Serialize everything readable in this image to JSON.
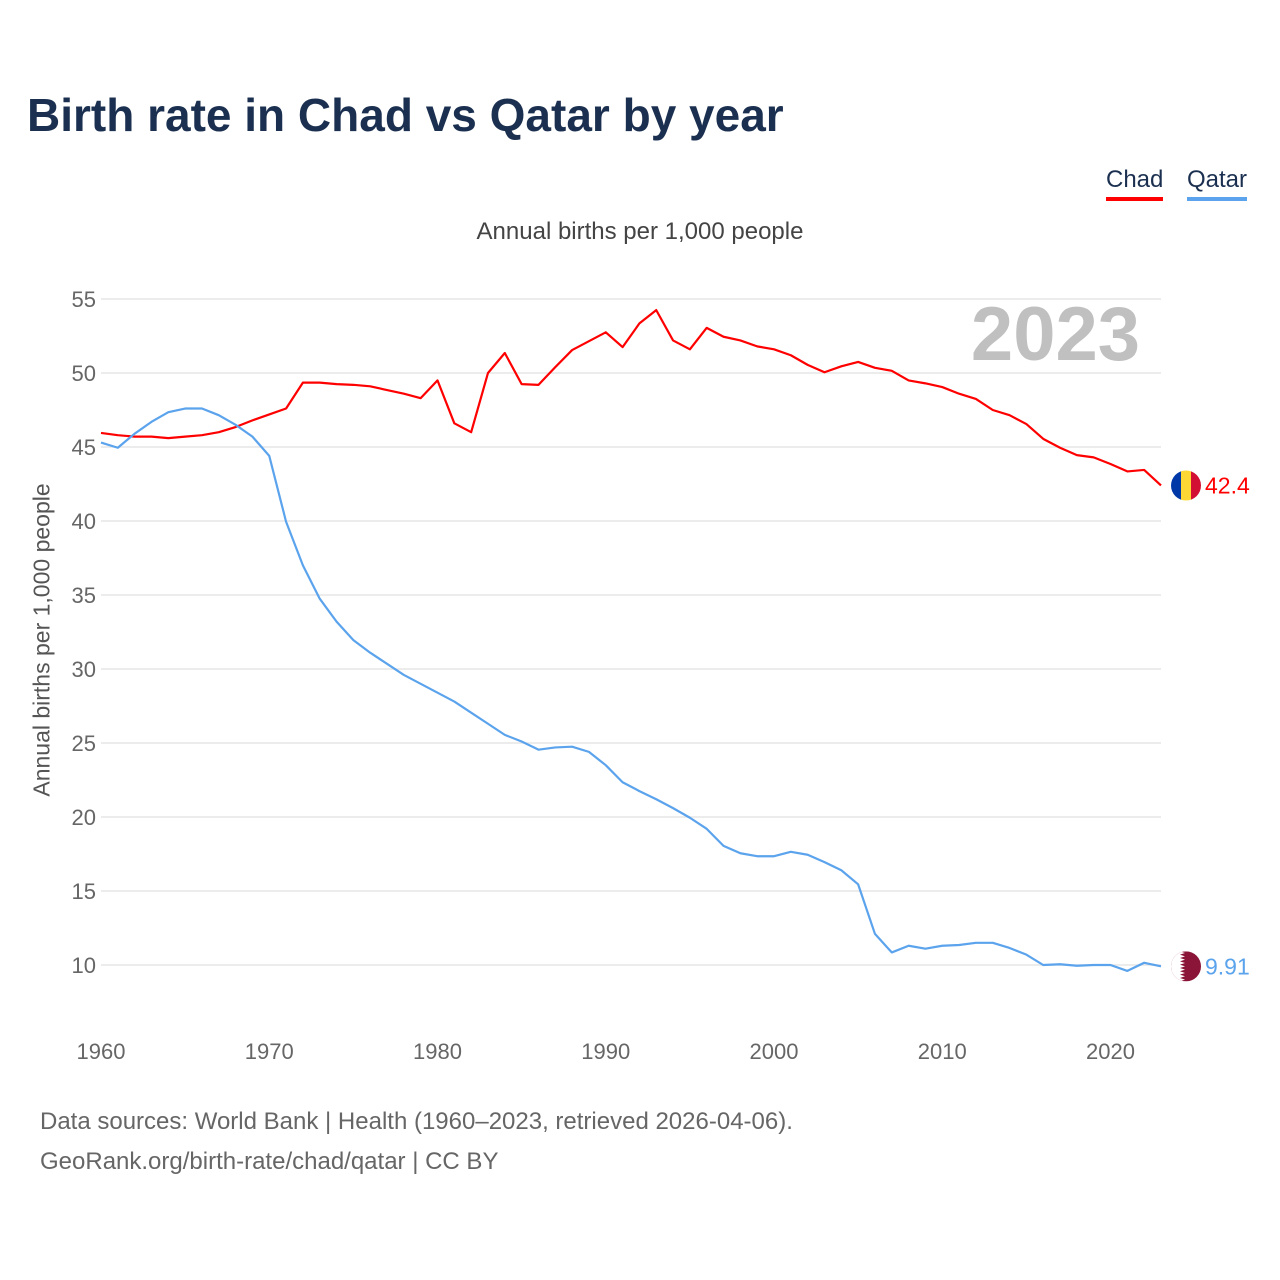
{
  "title": "Birth rate in Chad vs Qatar by year",
  "footer": {
    "line1": "Data sources: World Bank | Health (1960–2023, retrieved 2026-04-06).",
    "line2": "GeoRank.org/birth-rate/chad/qatar | CC BY"
  },
  "chart_data": {
    "type": "line",
    "title": "Birth rate in Chad vs Qatar by year",
    "subtitle": "Annual births per 1,000 people",
    "ylabel": "Annual births per 1,000 people",
    "xlabel": "",
    "year_label": "2023",
    "xlim": [
      1960,
      2023
    ],
    "ylim": [
      10,
      55
    ],
    "yticks": [
      10,
      15,
      20,
      25,
      30,
      35,
      40,
      45,
      50,
      55
    ],
    "xticks": [
      1960,
      1970,
      1980,
      1990,
      2000,
      2010,
      2020
    ],
    "grid": true,
    "legend": "top-right",
    "x_start": 1960,
    "series": [
      {
        "name": "Chad",
        "color": "#ff0000",
        "end_label": "42.4",
        "values": [
          45.95,
          45.8,
          45.7,
          45.7,
          45.6,
          45.7,
          45.8,
          46.0,
          46.35,
          46.8,
          47.2,
          47.6,
          49.35,
          49.35,
          49.25,
          49.2,
          49.1,
          48.85,
          48.6,
          48.3,
          49.5,
          46.6,
          46.0,
          50.0,
          51.35,
          49.25,
          49.2,
          50.4,
          51.55,
          52.15,
          52.75,
          51.75,
          53.35,
          54.25,
          52.2,
          51.6,
          53.05,
          52.45,
          52.2,
          51.8,
          51.6,
          51.2,
          50.55,
          50.05,
          50.45,
          50.75,
          50.35,
          50.15,
          49.5,
          49.3,
          49.05,
          48.6,
          48.25,
          47.5,
          47.15,
          46.55,
          45.55,
          44.95,
          44.45,
          44.3,
          43.85,
          43.35,
          43.45,
          42.4
        ]
      },
      {
        "name": "Qatar",
        "color": "#5ba3ec",
        "end_label": "9.91",
        "values": [
          45.3,
          44.95,
          45.9,
          46.7,
          47.35,
          47.6,
          47.6,
          47.15,
          46.5,
          45.7,
          44.4,
          39.95,
          37.0,
          34.75,
          33.2,
          31.95,
          31.1,
          30.35,
          29.6,
          29.0,
          28.4,
          27.8,
          27.05,
          26.3,
          25.55,
          25.1,
          24.55,
          24.7,
          24.75,
          24.4,
          23.5,
          22.35,
          21.75,
          21.2,
          20.6,
          19.95,
          19.2,
          18.05,
          17.55,
          17.35,
          17.35,
          17.65,
          17.45,
          16.95,
          16.4,
          15.45,
          12.1,
          10.85,
          11.3,
          11.1,
          11.3,
          11.35,
          11.5,
          11.5,
          11.15,
          10.7,
          10.0,
          10.05,
          9.95,
          10.0,
          10.0,
          9.6,
          10.15,
          9.91
        ]
      }
    ]
  }
}
